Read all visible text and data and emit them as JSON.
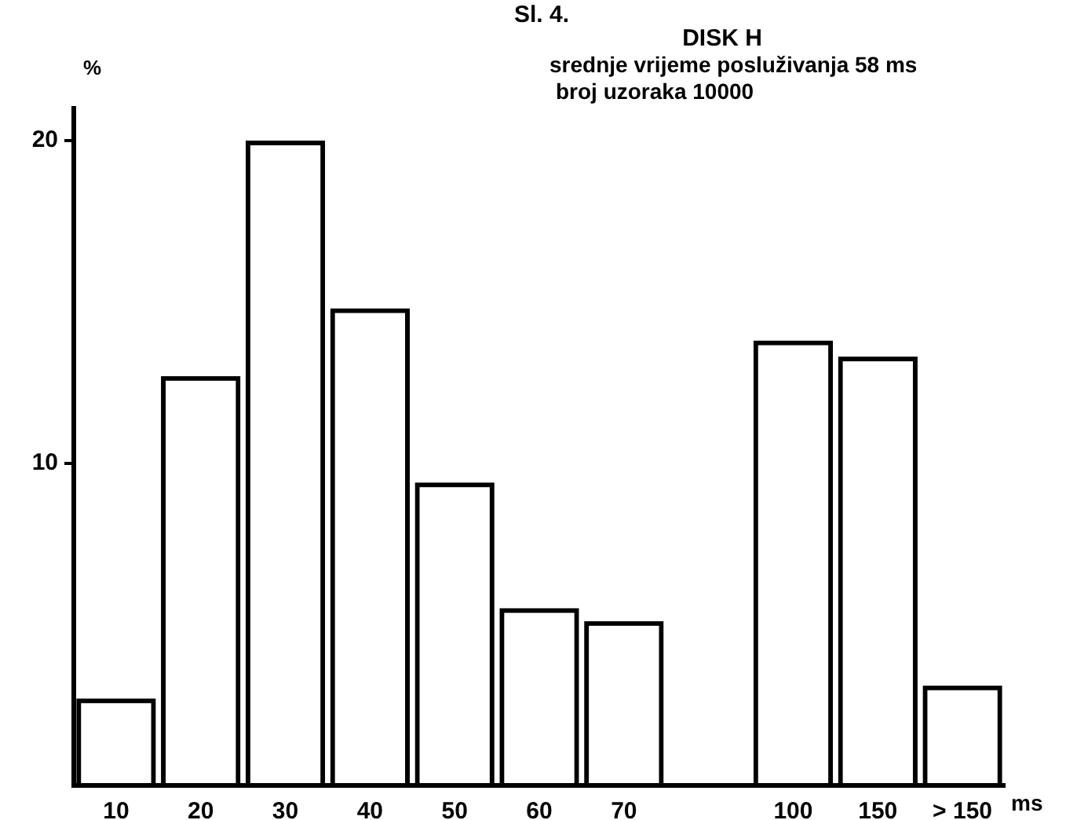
{
  "chart_data": {
    "type": "bar",
    "title": "Sl. 4.",
    "subtitle": "DISK H",
    "annotations": [
      "srednje vrijeme posluživanja 58 ms",
      "broj uzoraka 10000"
    ],
    "ylabel": "%",
    "xlabel": "ms",
    "categories": [
      "10",
      "20",
      "30",
      "40",
      "50",
      "60",
      "70",
      null,
      "100",
      "150",
      "> 150"
    ],
    "values": [
      2.7,
      12.7,
      20.0,
      14.8,
      9.4,
      5.5,
      5.1,
      null,
      13.8,
      13.3,
      3.1
    ],
    "color": "#000000",
    "ylim": [
      0,
      21
    ],
    "yticks": [
      10,
      20
    ]
  }
}
